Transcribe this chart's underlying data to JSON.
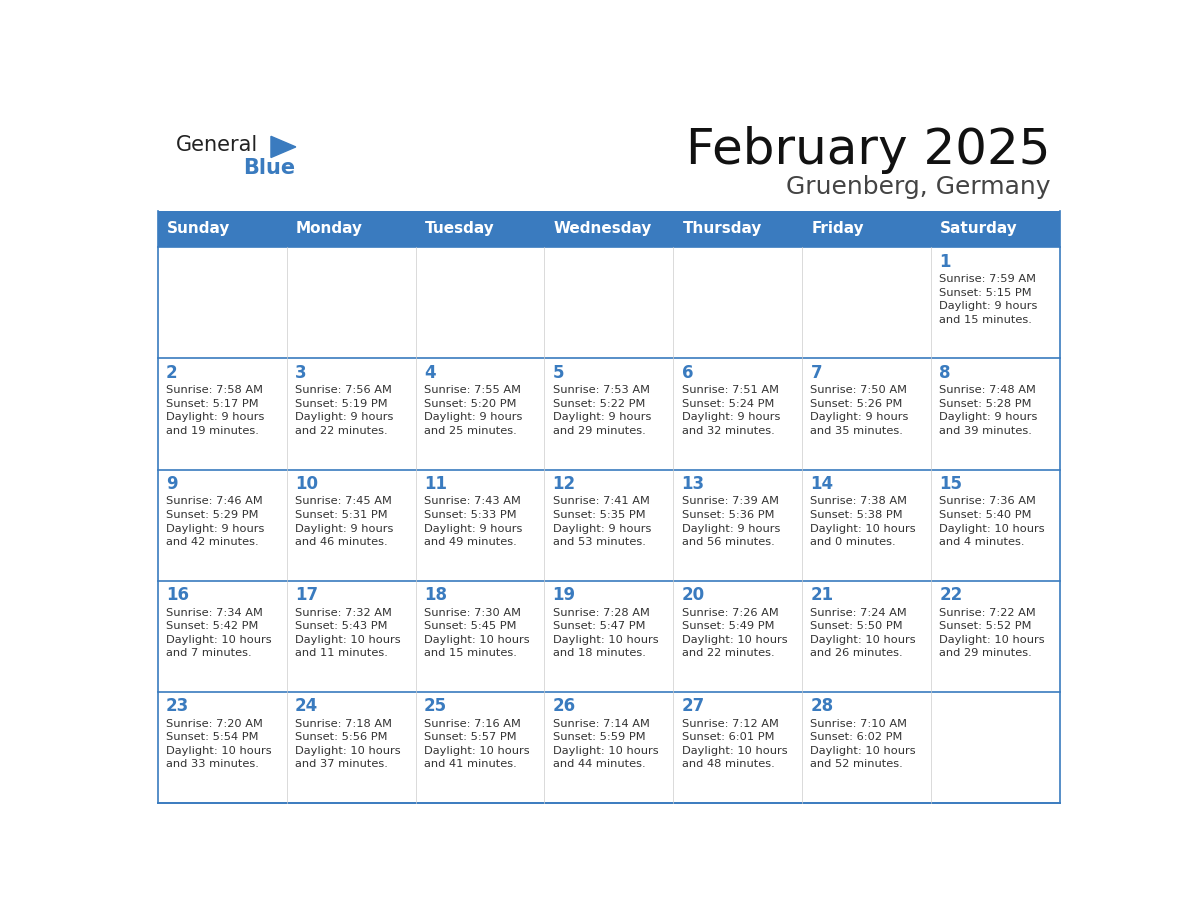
{
  "title": "February 2025",
  "subtitle": "Gruenberg, Germany",
  "header_color": "#3a7bbf",
  "header_text_color": "#ffffff",
  "header_days": [
    "Sunday",
    "Monday",
    "Tuesday",
    "Wednesday",
    "Thursday",
    "Friday",
    "Saturday"
  ],
  "line_color": "#3a7bbf",
  "day_number_color": "#3a7bbf",
  "cell_text_color": "#333333",
  "background_color": "#ffffff",
  "logo_general_color": "#222222",
  "logo_blue_color": "#3a7bbf",
  "days_data": [
    {
      "day": 1,
      "col": 6,
      "row": 0,
      "sunrise": "7:59 AM",
      "sunset": "5:15 PM",
      "daylight_hours": 9,
      "daylight_minutes": 15
    },
    {
      "day": 2,
      "col": 0,
      "row": 1,
      "sunrise": "7:58 AM",
      "sunset": "5:17 PM",
      "daylight_hours": 9,
      "daylight_minutes": 19
    },
    {
      "day": 3,
      "col": 1,
      "row": 1,
      "sunrise": "7:56 AM",
      "sunset": "5:19 PM",
      "daylight_hours": 9,
      "daylight_minutes": 22
    },
    {
      "day": 4,
      "col": 2,
      "row": 1,
      "sunrise": "7:55 AM",
      "sunset": "5:20 PM",
      "daylight_hours": 9,
      "daylight_minutes": 25
    },
    {
      "day": 5,
      "col": 3,
      "row": 1,
      "sunrise": "7:53 AM",
      "sunset": "5:22 PM",
      "daylight_hours": 9,
      "daylight_minutes": 29
    },
    {
      "day": 6,
      "col": 4,
      "row": 1,
      "sunrise": "7:51 AM",
      "sunset": "5:24 PM",
      "daylight_hours": 9,
      "daylight_minutes": 32
    },
    {
      "day": 7,
      "col": 5,
      "row": 1,
      "sunrise": "7:50 AM",
      "sunset": "5:26 PM",
      "daylight_hours": 9,
      "daylight_minutes": 35
    },
    {
      "day": 8,
      "col": 6,
      "row": 1,
      "sunrise": "7:48 AM",
      "sunset": "5:28 PM",
      "daylight_hours": 9,
      "daylight_minutes": 39
    },
    {
      "day": 9,
      "col": 0,
      "row": 2,
      "sunrise": "7:46 AM",
      "sunset": "5:29 PM",
      "daylight_hours": 9,
      "daylight_minutes": 42
    },
    {
      "day": 10,
      "col": 1,
      "row": 2,
      "sunrise": "7:45 AM",
      "sunset": "5:31 PM",
      "daylight_hours": 9,
      "daylight_minutes": 46
    },
    {
      "day": 11,
      "col": 2,
      "row": 2,
      "sunrise": "7:43 AM",
      "sunset": "5:33 PM",
      "daylight_hours": 9,
      "daylight_minutes": 49
    },
    {
      "day": 12,
      "col": 3,
      "row": 2,
      "sunrise": "7:41 AM",
      "sunset": "5:35 PM",
      "daylight_hours": 9,
      "daylight_minutes": 53
    },
    {
      "day": 13,
      "col": 4,
      "row": 2,
      "sunrise": "7:39 AM",
      "sunset": "5:36 PM",
      "daylight_hours": 9,
      "daylight_minutes": 56
    },
    {
      "day": 14,
      "col": 5,
      "row": 2,
      "sunrise": "7:38 AM",
      "sunset": "5:38 PM",
      "daylight_hours": 10,
      "daylight_minutes": 0
    },
    {
      "day": 15,
      "col": 6,
      "row": 2,
      "sunrise": "7:36 AM",
      "sunset": "5:40 PM",
      "daylight_hours": 10,
      "daylight_minutes": 4
    },
    {
      "day": 16,
      "col": 0,
      "row": 3,
      "sunrise": "7:34 AM",
      "sunset": "5:42 PM",
      "daylight_hours": 10,
      "daylight_minutes": 7
    },
    {
      "day": 17,
      "col": 1,
      "row": 3,
      "sunrise": "7:32 AM",
      "sunset": "5:43 PM",
      "daylight_hours": 10,
      "daylight_minutes": 11
    },
    {
      "day": 18,
      "col": 2,
      "row": 3,
      "sunrise": "7:30 AM",
      "sunset": "5:45 PM",
      "daylight_hours": 10,
      "daylight_minutes": 15
    },
    {
      "day": 19,
      "col": 3,
      "row": 3,
      "sunrise": "7:28 AM",
      "sunset": "5:47 PM",
      "daylight_hours": 10,
      "daylight_minutes": 18
    },
    {
      "day": 20,
      "col": 4,
      "row": 3,
      "sunrise": "7:26 AM",
      "sunset": "5:49 PM",
      "daylight_hours": 10,
      "daylight_minutes": 22
    },
    {
      "day": 21,
      "col": 5,
      "row": 3,
      "sunrise": "7:24 AM",
      "sunset": "5:50 PM",
      "daylight_hours": 10,
      "daylight_minutes": 26
    },
    {
      "day": 22,
      "col": 6,
      "row": 3,
      "sunrise": "7:22 AM",
      "sunset": "5:52 PM",
      "daylight_hours": 10,
      "daylight_minutes": 29
    },
    {
      "day": 23,
      "col": 0,
      "row": 4,
      "sunrise": "7:20 AM",
      "sunset": "5:54 PM",
      "daylight_hours": 10,
      "daylight_minutes": 33
    },
    {
      "day": 24,
      "col": 1,
      "row": 4,
      "sunrise": "7:18 AM",
      "sunset": "5:56 PM",
      "daylight_hours": 10,
      "daylight_minutes": 37
    },
    {
      "day": 25,
      "col": 2,
      "row": 4,
      "sunrise": "7:16 AM",
      "sunset": "5:57 PM",
      "daylight_hours": 10,
      "daylight_minutes": 41
    },
    {
      "day": 26,
      "col": 3,
      "row": 4,
      "sunrise": "7:14 AM",
      "sunset": "5:59 PM",
      "daylight_hours": 10,
      "daylight_minutes": 44
    },
    {
      "day": 27,
      "col": 4,
      "row": 4,
      "sunrise": "7:12 AM",
      "sunset": "6:01 PM",
      "daylight_hours": 10,
      "daylight_minutes": 48
    },
    {
      "day": 28,
      "col": 5,
      "row": 4,
      "sunrise": "7:10 AM",
      "sunset": "6:02 PM",
      "daylight_hours": 10,
      "daylight_minutes": 52
    }
  ]
}
